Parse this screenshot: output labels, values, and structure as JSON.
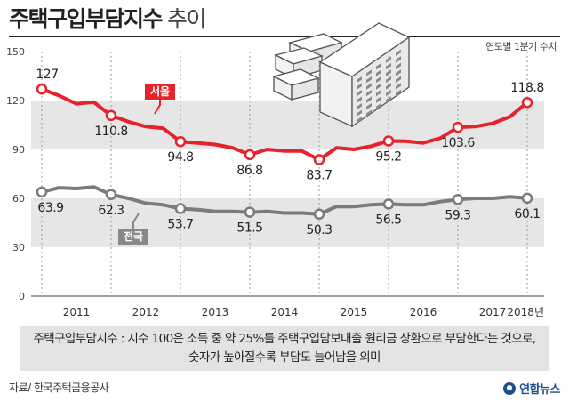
{
  "title": "주택구입부담지수",
  "title_suffix": "추이",
  "unit_note": "연도별 1분기 수치",
  "note_line1": "주택구입부담지수 : 지수 100은 소득 중 약 25%를 주택구입담보대출 원리금 상환으로 부담한다는 것으로,",
  "note_line2": "숫자가 높아질수록 부담도 늘어남을 의미",
  "source": "자료/ 한국주택금융공사",
  "logo": "연합뉴스",
  "chart_data": {
    "type": "line",
    "y_axis": {
      "ylim": [
        0,
        150
      ],
      "ticks": [
        0,
        30,
        60,
        90,
        120,
        150
      ]
    },
    "x_axis": {
      "labels": [
        "2011",
        "2012",
        "2013",
        "2014",
        "2015",
        "2016",
        "2017",
        "2018년"
      ],
      "first_quarter_label": "2011 Q1",
      "last_quarter_label": "2018 Q1"
    },
    "series": [
      {
        "name": "서울",
        "color": "#e8222a",
        "values": [
          127,
          123,
          118,
          119,
          110.8,
          107,
          104,
          103,
          94.8,
          94,
          93,
          91,
          86.8,
          90,
          89,
          89,
          83.7,
          91,
          90,
          92,
          95.2,
          95,
          94,
          97,
          103.6,
          104,
          106,
          110,
          118.8
        ],
        "labels": [
          {
            "index": 0,
            "text": "127"
          },
          {
            "index": 4,
            "text": "110.8"
          },
          {
            "index": 8,
            "text": "94.8"
          },
          {
            "index": 12,
            "text": "86.8"
          },
          {
            "index": 16,
            "text": "83.7"
          },
          {
            "index": 20,
            "text": "95.2"
          },
          {
            "index": 24,
            "text": "103.6"
          },
          {
            "index": 28,
            "text": "118.8"
          }
        ]
      },
      {
        "name": "전국",
        "color": "#7b7b7b",
        "values": [
          63.9,
          66.5,
          66,
          67,
          62.3,
          60,
          57,
          56,
          53.7,
          53,
          52,
          52,
          51.5,
          52,
          51,
          51,
          50.3,
          55,
          55,
          56,
          56.5,
          56,
          56,
          58,
          59.3,
          60,
          60,
          61,
          60.1
        ],
        "labels": [
          {
            "index": 0,
            "text": "63.9"
          },
          {
            "index": 4,
            "text": "62.3"
          },
          {
            "index": 8,
            "text": "53.7"
          },
          {
            "index": 12,
            "text": "51.5"
          },
          {
            "index": 16,
            "text": "50.3"
          },
          {
            "index": 20,
            "text": "56.5"
          },
          {
            "index": 24,
            "text": "59.3"
          },
          {
            "index": 28,
            "text": "60.1"
          }
        ]
      }
    ],
    "grid": true,
    "markers_on_annual_q1": true
  }
}
